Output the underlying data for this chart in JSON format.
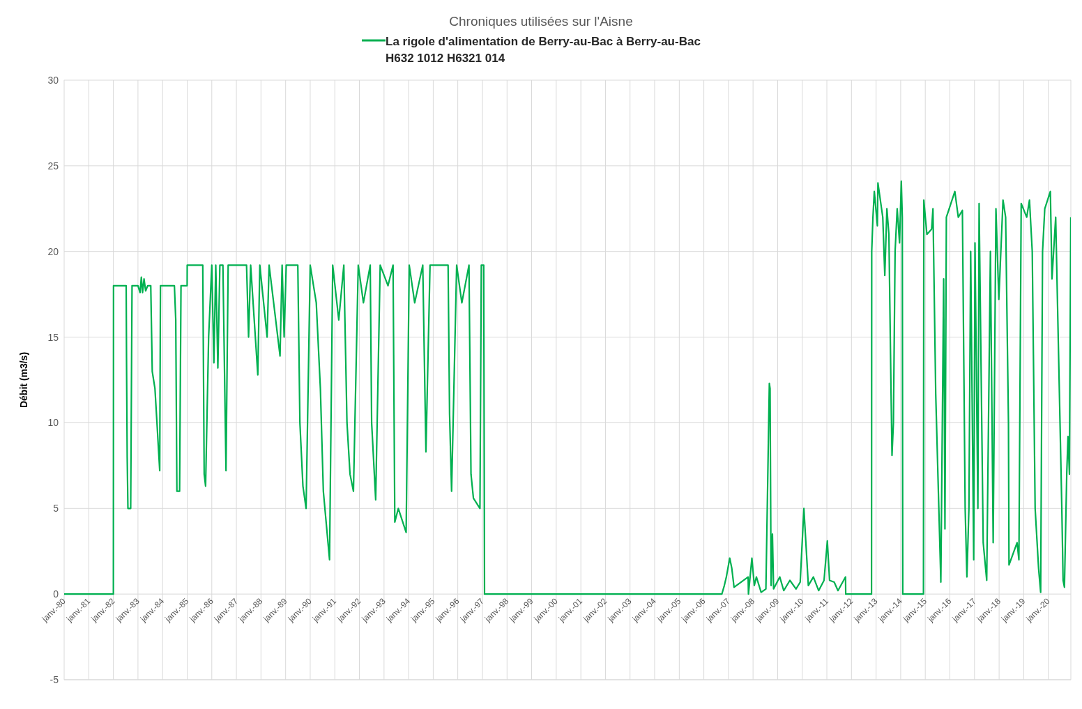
{
  "chart_data": {
    "type": "line",
    "title": "Chroniques utilisées sur l'Aisne",
    "ylabel": "Débit (m3/s)",
    "legend": "top",
    "grid": true,
    "marker": "none",
    "line_style": "solid",
    "ylim": [
      -5,
      30
    ],
    "yticks": [
      -5,
      0,
      5,
      10,
      15,
      20,
      25,
      30
    ],
    "xlim": [
      "1980-01-01",
      "2020-12-01"
    ],
    "xticks": [
      {
        "value": "1980-01-01",
        "label": "janv.-80"
      },
      {
        "value": "1981-01-01",
        "label": "janv.-81"
      },
      {
        "value": "1982-01-01",
        "label": "janv.-82"
      },
      {
        "value": "1983-01-01",
        "label": "janv.-83"
      },
      {
        "value": "1984-01-01",
        "label": "janv.-84"
      },
      {
        "value": "1985-01-01",
        "label": "janv.-85"
      },
      {
        "value": "1986-01-01",
        "label": "janv.-86"
      },
      {
        "value": "1987-01-01",
        "label": "janv.-87"
      },
      {
        "value": "1988-01-01",
        "label": "janv.-88"
      },
      {
        "value": "1989-01-01",
        "label": "janv.-89"
      },
      {
        "value": "1990-01-01",
        "label": "janv.-90"
      },
      {
        "value": "1991-01-01",
        "label": "janv.-91"
      },
      {
        "value": "1992-01-01",
        "label": "janv.-92"
      },
      {
        "value": "1993-01-01",
        "label": "janv.-93"
      },
      {
        "value": "1994-01-01",
        "label": "janv.-94"
      },
      {
        "value": "1995-01-01",
        "label": "janv.-95"
      },
      {
        "value": "1996-01-01",
        "label": "janv.-96"
      },
      {
        "value": "1997-01-01",
        "label": "janv.-97"
      },
      {
        "value": "1998-01-01",
        "label": "janv.-98"
      },
      {
        "value": "1999-01-01",
        "label": "janv.-99"
      },
      {
        "value": "2000-01-01",
        "label": "janv.-00"
      },
      {
        "value": "2001-01-01",
        "label": "janv.-01"
      },
      {
        "value": "2002-01-01",
        "label": "janv.-02"
      },
      {
        "value": "2003-01-01",
        "label": "janv.-03"
      },
      {
        "value": "2004-01-01",
        "label": "janv.-04"
      },
      {
        "value": "2005-01-01",
        "label": "janv.-05"
      },
      {
        "value": "2006-01-01",
        "label": "janv.-06"
      },
      {
        "value": "2007-01-01",
        "label": "janv.-07"
      },
      {
        "value": "2008-01-01",
        "label": "janv.-08"
      },
      {
        "value": "2009-01-01",
        "label": "janv.-09"
      },
      {
        "value": "2010-01-01",
        "label": "janv.-10"
      },
      {
        "value": "2011-01-01",
        "label": "janv.-11"
      },
      {
        "value": "2012-01-01",
        "label": "janv.-12"
      },
      {
        "value": "2013-01-01",
        "label": "janv.-13"
      },
      {
        "value": "2014-01-01",
        "label": "janv.-14"
      },
      {
        "value": "2015-01-01",
        "label": "janv.-15"
      },
      {
        "value": "2016-01-01",
        "label": "janv.-16"
      },
      {
        "value": "2017-01-01",
        "label": "janv.-17"
      },
      {
        "value": "2018-01-01",
        "label": "janv.-18"
      },
      {
        "value": "2019-01-01",
        "label": "janv.-19"
      },
      {
        "value": "2020-01-01",
        "label": "janv.-20"
      }
    ],
    "x": [
      "1980-01-01",
      "1982-01-01",
      "1982-01-03",
      "1982-07-10",
      "1982-07-15",
      "1982-07-25",
      "1982-08-05",
      "1982-09-15",
      "1982-10-05",
      "1983-01-01",
      "1983-02-01",
      "1983-02-20",
      "1983-03-10",
      "1983-04-01",
      "1983-04-25",
      "1983-05-25",
      "1983-07-10",
      "1983-08-01",
      "1983-09-10",
      "1983-10-10",
      "1983-11-20",
      "1983-12-01",
      "1984-06-25",
      "1984-07-15",
      "1984-08-01",
      "1984-09-10",
      "1984-10-01",
      "1984-12-31",
      "1985-01-01",
      "1985-08-20",
      "1985-09-10",
      "1985-10-01",
      "1985-11-15",
      "1986-01-01",
      "1986-02-01",
      "1986-03-01",
      "1986-04-01",
      "1986-05-01",
      "1986-06-15",
      "1986-07-31",
      "1986-09-01",
      "1987-06-01",
      "1987-07-01",
      "1987-08-01",
      "1987-11-15",
      "1987-12-15",
      "1988-04-01",
      "1988-05-01",
      "1988-10-10",
      "1988-11-10",
      "1988-12-10",
      "1989-01-10",
      "1989-07-01",
      "1989-08-01",
      "1989-09-15",
      "1989-11-01",
      "1990-01-01",
      "1990-04-01",
      "1990-06-01",
      "1990-07-15",
      "1990-10-15",
      "1990-12-01",
      "1991-03-01",
      "1991-05-15",
      "1991-07-01",
      "1991-08-15",
      "1991-10-05",
      "1991-12-15",
      "1992-03-01",
      "1992-06-10",
      "1992-07-01",
      "1992-08-30",
      "1992-11-05",
      "1993-03-01",
      "1993-05-15",
      "1993-06-10",
      "1993-08-01",
      "1993-11-25",
      "1994-01-10",
      "1994-04-01",
      "1994-07-30",
      "1994-09-15",
      "1994-11-15",
      "1995-08-10",
      "1995-09-01",
      "1995-10-01",
      "1995-12-15",
      "1996-03-01",
      "1996-06-15",
      "1996-07-15",
      "1996-08-20",
      "1996-11-25",
      "1996-12-15",
      "1997-01-20",
      "1997-02-01",
      "2006-09-25",
      "2006-11-01",
      "2006-12-01",
      "2007-01-20",
      "2007-02-20",
      "2007-03-25",
      "2007-10-20",
      "2007-10-25",
      "2007-12-15",
      "2008-01-20",
      "2008-02-20",
      "2008-04-30",
      "2008-07-10",
      "2008-08-30",
      "2008-09-10",
      "2008-09-25",
      "2008-10-15",
      "2008-11-01",
      "2009-02-01",
      "2009-04-01",
      "2009-07-01",
      "2009-10-01",
      "2009-12-01",
      "2010-01-25",
      "2010-04-01",
      "2010-06-15",
      "2010-09-01",
      "2010-11-20",
      "2011-01-08",
      "2011-02-10",
      "2011-04-20",
      "2011-06-15",
      "2011-10-05",
      "2011-10-08",
      "2012-10-25",
      "2012-10-28",
      "2012-11-15",
      "2012-12-05",
      "2013-01-20",
      "2013-01-28",
      "2013-04-10",
      "2013-05-10",
      "2013-06-10",
      "2013-07-10",
      "2013-08-10",
      "2013-08-25",
      "2013-09-15",
      "2013-10-10",
      "2013-11-10",
      "2013-12-15",
      "2014-01-10",
      "2014-01-25",
      "2014-02-01",
      "2014-12-05",
      "2014-12-10",
      "2015-01-25",
      "2015-04-05",
      "2015-04-25",
      "2015-06-05",
      "2015-08-20",
      "2015-10-01",
      "2015-10-20",
      "2015-11-10",
      "2016-03-15",
      "2016-05-05",
      "2016-07-05",
      "2016-08-15",
      "2016-09-10",
      "2016-10-10",
      "2016-11-05",
      "2016-12-20",
      "2017-01-08",
      "2017-02-20",
      "2017-03-10",
      "2017-05-10",
      "2017-07-01",
      "2017-08-25",
      "2017-10-05",
      "2017-11-15",
      "2017-12-28",
      "2018-02-28",
      "2018-04-08",
      "2018-05-20",
      "2018-05-28",
      "2018-09-25",
      "2018-10-22",
      "2018-11-25",
      "2019-02-15",
      "2019-03-28",
      "2019-05-08",
      "2019-06-20",
      "2019-08-10",
      "2019-09-10",
      "2019-10-08",
      "2019-11-10",
      "2020-02-01",
      "2020-02-25",
      "2020-04-20",
      "2020-07-20",
      "2020-08-08",
      "2020-08-28",
      "2020-10-01",
      "2020-10-20",
      "2020-11-10",
      "2020-11-30"
    ],
    "series": [
      {
        "name": "La rigole d'alimentation de Berry-au-Bac à Berry-au-Bac H632 1012 H6321 014",
        "color": "#00b050",
        "values": [
          0,
          0,
          18,
          18,
          13.8,
          8,
          5,
          5,
          18,
          18,
          17.6,
          18.5,
          17.6,
          18.4,
          17.7,
          18,
          18,
          13,
          12,
          10,
          7.2,
          18,
          18,
          16,
          6,
          6,
          18,
          18,
          19.2,
          19.2,
          7,
          6.3,
          15,
          19.2,
          13.5,
          19.2,
          13.2,
          19.2,
          19.2,
          7.2,
          19.2,
          19.2,
          15,
          19.2,
          12.8,
          19.2,
          15,
          19.2,
          13.9,
          19.2,
          15,
          19.2,
          19.2,
          10,
          6.3,
          5,
          19.2,
          17,
          12,
          6,
          2,
          19.2,
          16,
          19.2,
          10,
          7,
          6,
          19.2,
          17,
          19.2,
          10,
          5.5,
          19.2,
          18,
          19.2,
          4.2,
          5,
          3.6,
          19.2,
          17,
          19.2,
          8.3,
          19.2,
          19.2,
          10.5,
          6,
          19.2,
          17,
          19.2,
          7,
          5.6,
          5,
          19.2,
          19.2,
          0,
          0,
          0.5,
          1,
          2.1,
          1.5,
          0.4,
          1,
          0,
          2.1,
          0.5,
          1,
          0.1,
          0.3,
          12.3,
          12,
          0.5,
          3.5,
          0.3,
          1,
          0.2,
          0.8,
          0.3,
          0.7,
          5,
          0.5,
          1,
          0.2,
          0.8,
          3.1,
          0.8,
          0.7,
          0.2,
          1,
          0,
          0,
          20,
          22,
          23.5,
          21.5,
          24,
          22,
          18.6,
          22.5,
          21,
          12,
          8.1,
          10,
          20,
          22.5,
          20.5,
          24.1,
          22,
          0,
          0,
          23,
          21,
          21.3,
          22.5,
          11.7,
          0.7,
          18.4,
          3.8,
          22,
          23.5,
          22,
          22.4,
          5,
          1,
          5,
          20,
          2,
          20.5,
          5,
          22.8,
          3,
          0.8,
          20,
          3,
          22.5,
          17.2,
          23,
          22,
          10,
          1.7,
          3,
          2,
          22.8,
          22,
          23,
          20,
          5,
          1.5,
          0.1,
          20,
          22.5,
          23.5,
          18.4,
          22,
          5,
          0.8,
          0.4,
          7,
          9.2,
          7,
          22
        ]
      }
    ]
  }
}
